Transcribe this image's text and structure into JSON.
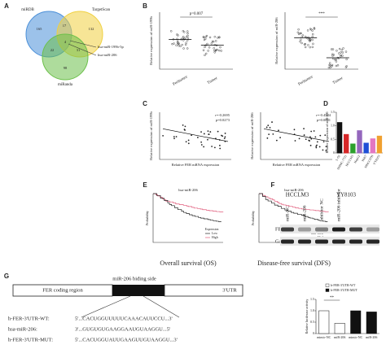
{
  "panels": {
    "a": {
      "label": "A",
      "sets": [
        "miRDB",
        "TargetScan",
        "miRanda"
      ],
      "counts": [
        165,
        132,
        98,
        17,
        22,
        31,
        4
      ],
      "mirnas": [
        "hsa-miR-199b-5p",
        "hsa-miR-206"
      ]
    },
    "b": {
      "label": "B",
      "groups": [
        "Peritumor",
        "Tumor"
      ],
      "plots": [
        {
          "y_label": "Relative expression of miR-199b",
          "stat": "p=0.007"
        },
        {
          "y_label": "Relative expression of miR-206",
          "stat": "***"
        }
      ]
    },
    "c": {
      "label": "C",
      "x_label": "Relative FER mRNA expression",
      "plots": [
        {
          "y_label": "Relative expression of miR-199b",
          "r": "r=-0.2695",
          "p": "p=0.0273"
        },
        {
          "y_label": "Relative expression of miR-206",
          "r": "r=-0.4584",
          "p": "p=0.0001"
        }
      ]
    },
    "d": {
      "label": "D",
      "y_label": "Relative expression of miR-206",
      "categories": [
        "L-02",
        "SMMC-7721",
        "HCCLM3",
        "HepG2",
        "Huh7",
        "MHCC97H",
        "YY8103"
      ],
      "values": [
        1.12,
        0.68,
        0.33,
        0.82,
        0.36,
        0.52,
        0.62
      ],
      "colors": [
        "#111111",
        "#d62728",
        "#2ca02c",
        "#9467bd",
        "#1f4fd6",
        "#e377c2",
        "#f0a030"
      ],
      "ylim": [
        0,
        1.5
      ],
      "yticks": [
        0,
        0.5,
        {
          "value": 1,
          "label": "1.0"
        },
        1.5
      ]
    },
    "e": {
      "label": "E",
      "y_label": "Probability",
      "legend_title": "Expression",
      "legend": [
        "Low",
        "High"
      ],
      "plots": [
        {
          "title": "hsa-miR-206",
          "caption": "Overall survival (OS)"
        },
        {
          "title": "hsa-miR-206",
          "caption": "Disease-free survival (DFS)"
        }
      ]
    },
    "f": {
      "label": "F",
      "cells": [
        "HCCLM3",
        "YY8103"
      ],
      "lanes": [
        "miR-NC",
        "miR-206",
        "inhibitor NC",
        "miR-206 inhibitor"
      ],
      "proteins": [
        "FER",
        "GAPDH"
      ]
    },
    "g": {
      "label": "G",
      "region": "FER coding region",
      "site": "miR-206 biding side",
      "utr": "3'UTR",
      "rows": [
        [
          "h-FER-3'UTR-WT:",
          "5'...CACUGGUUUUUCAAACAUUCCU...3'"
        ],
        [
          "hsa-miR-206:",
          "3'...GUGUGUGAAGGAAUGUAAGGU...5'"
        ],
        [
          "h-FER-3'UTR-MUT:",
          "5'...CACUGGUAUUGAAGUUGUAAGGU...3'"
        ]
      ],
      "chart": {
        "y_label": "Relative luciferase activity",
        "stat": "**",
        "categories": [
          "mimic-NC",
          "miR-206",
          "mimic-NC",
          "miR-206"
        ],
        "series": [
          {
            "name": "h-FER-3'UTR-WT",
            "color": "#ffffff",
            "values": [
              1.0,
              0.45,
              null,
              null
            ]
          },
          {
            "name": "h-FER-3'UTR-MUT",
            "color": "#111111",
            "values": [
              null,
              null,
              1.0,
              0.95
            ]
          }
        ],
        "ylim": [
          0,
          1.5
        ],
        "yticks": [
          0,
          0.5,
          {
            "value": 1,
            "label": "1.0"
          },
          1.5
        ]
      }
    }
  }
}
